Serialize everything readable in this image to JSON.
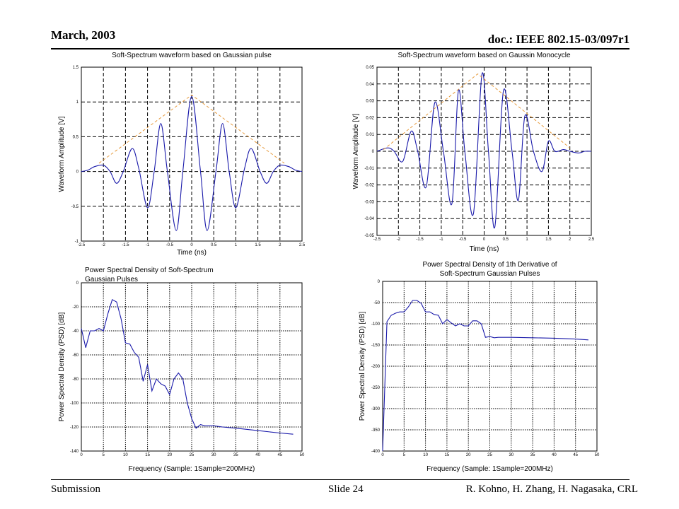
{
  "header": {
    "date": "March, 2003",
    "doc": "doc.: IEEE 802.15-03/097r1"
  },
  "footer": {
    "left": "Submission",
    "slide": "Slide 24",
    "authors": "R. Kohno, H. Zhang, H. Nagasaka, CRL"
  },
  "colors": {
    "curve": "#1a1aaa",
    "envelope": "#e69a3c",
    "grid": "#000000"
  },
  "chart_data": [
    {
      "type": "line",
      "title": "Soft-Spectrum waveform based on Gaussian pulse",
      "xlabel": "Time (ns)",
      "ylabel": "Waveform Amplitude [V]",
      "xlim": [
        -2.5,
        2.5
      ],
      "ylim": [
        -1,
        1.5
      ],
      "xticks": [
        "-2.5",
        "-2",
        "-1.5",
        "-1",
        "-0.5",
        "0",
        "0.5",
        "1",
        "1.5",
        "2",
        "2.5"
      ],
      "yticks": [
        "-1",
        "-0.5",
        "0",
        "0.5",
        "1",
        "1.5"
      ],
      "grid": true,
      "series": [
        {
          "x": [
            -2.5,
            -2.35,
            -2.2,
            -2.0,
            -1.85,
            -1.7,
            -1.55,
            -1.35,
            -1.2,
            -1.0,
            -0.85,
            -0.7,
            -0.55,
            -0.35,
            -0.2,
            0.0,
            0.2,
            0.35,
            0.55,
            0.7,
            0.85,
            1.0,
            1.2,
            1.35,
            1.55,
            1.7,
            1.85,
            2.0,
            2.2,
            2.35,
            2.5
          ],
          "y": [
            0.0,
            0.02,
            0.07,
            0.09,
            0.0,
            -0.17,
            0.0,
            0.33,
            0.05,
            -0.52,
            0.0,
            0.69,
            0.0,
            -0.85,
            0.0,
            1.08,
            0.0,
            -0.85,
            0.0,
            0.69,
            0.0,
            -0.52,
            0.05,
            0.33,
            0.0,
            -0.17,
            0.0,
            0.09,
            0.07,
            0.02,
            0.0
          ]
        },
        {
          "name": "",
          "style": "dashed-envelope",
          "x": [
            -2.1,
            0.0,
            2.1
          ],
          "y": [
            0.12,
            1.1,
            0.12
          ]
        }
      ]
    },
    {
      "type": "line",
      "title": "Soft-Spectrum waveform based on Gaussin Monocycle",
      "xlabel": "Time (ns)",
      "ylabel": "Waveform Amplitude [V]",
      "xlim": [
        -2.5,
        2.5
      ],
      "ylim": [
        -0.05,
        0.05
      ],
      "xticks": [
        "-2.5",
        "-2",
        "-1.5",
        "-1",
        "-0.5",
        "0",
        "0.5",
        "1",
        "1.5",
        "2",
        "2.5"
      ],
      "yticks": [
        "-0.05",
        "-0.04",
        "-0.03",
        "-0.02",
        "-0.01",
        "0",
        "0.01",
        "0.02",
        "0.03",
        "0.04",
        "0.05"
      ],
      "grid": true,
      "series": [
        {
          "x": [
            -2.5,
            -2.25,
            -2.1,
            -1.9,
            -1.7,
            -1.55,
            -1.35,
            -1.15,
            -0.95,
            -0.75,
            -0.6,
            -0.45,
            -0.25,
            -0.05,
            0.1,
            0.25,
            0.45,
            0.65,
            0.8,
            0.95,
            1.15,
            1.35,
            1.5,
            1.65,
            1.85,
            2.0,
            2.2,
            2.35,
            2.5
          ],
          "y": [
            0.0,
            0.002,
            0.0,
            -0.006,
            0.012,
            0.0,
            -0.021,
            0.029,
            0.0,
            -0.031,
            0.036,
            0.0,
            -0.037,
            0.046,
            0.0,
            -0.045,
            0.036,
            0.0,
            -0.029,
            0.021,
            0.0,
            -0.012,
            0.006,
            0.0,
            0.001,
            0.0,
            -0.001,
            0.0,
            0.0
          ]
        },
        {
          "name": "",
          "style": "dashed-envelope",
          "x": [
            -2.35,
            -0.15,
            2.0
          ],
          "y": [
            0.001,
            0.046,
            0.002
          ]
        }
      ]
    },
    {
      "type": "line",
      "title": "Power Spectral Density of Soft-Spectrum Gaussian Pulses",
      "xlabel": "Frequency (Sample: 1Sample=200MHz)",
      "ylabel": "Power Spectral Density (PSD) [dB]",
      "xlim": [
        0,
        50
      ],
      "ylim": [
        -140,
        0
      ],
      "xticks": [
        "0",
        "5",
        "10",
        "15",
        "20",
        "25",
        "30",
        "35",
        "40",
        "45",
        "50"
      ],
      "yticks": [
        "-140",
        "-120",
        "-100",
        "-80",
        "-60",
        "-40",
        "-20",
        "0"
      ],
      "grid": true,
      "series": [
        {
          "x": [
            0,
            1,
            2,
            3,
            4,
            5,
            6,
            7,
            8,
            9,
            10,
            11,
            12,
            13,
            14,
            15,
            16,
            17,
            18,
            19,
            20,
            21,
            22,
            23,
            24,
            25,
            26,
            27,
            28,
            29,
            30,
            32,
            35,
            40,
            45,
            48
          ],
          "y": [
            -38,
            -54,
            -40,
            -40,
            -38,
            -40,
            -26,
            -14,
            -16,
            -30,
            -50,
            -51,
            -58,
            -62,
            -82,
            -68,
            -90,
            -80,
            -84,
            -86,
            -93,
            -80,
            -75,
            -80,
            -100,
            -113,
            -121,
            -118,
            -119,
            -119,
            -119,
            -120,
            -121,
            -123,
            -125,
            -126
          ]
        }
      ]
    },
    {
      "type": "line",
      "title": "Power Spectral Density of 1th Derivative of Soft-Spectrum Gaussian Pulses",
      "xlabel": "Frequency (Sample: 1Sample=200MHz)",
      "ylabel": "Power Spectral Density (PSD) [dB]",
      "xlim": [
        0,
        50
      ],
      "ylim": [
        -400,
        0
      ],
      "xticks": [
        "0",
        "5",
        "10",
        "15",
        "20",
        "25",
        "30",
        "35",
        "40",
        "45",
        "50"
      ],
      "yticks": [
        "-400",
        "-350",
        "-300",
        "-250",
        "-200",
        "-150",
        "-100",
        "-50",
        "0"
      ],
      "grid": true,
      "series": [
        {
          "x": [
            0,
            0.5,
            1,
            2,
            3,
            4,
            5,
            6,
            7,
            8,
            9,
            10,
            11,
            12,
            13,
            14,
            15,
            16,
            17,
            18,
            19,
            20,
            21,
            22,
            23,
            24,
            25,
            26,
            27,
            28,
            30,
            35,
            40,
            45,
            48
          ],
          "y": [
            -400,
            -250,
            -95,
            -80,
            -75,
            -72,
            -72,
            -60,
            -45,
            -45,
            -52,
            -72,
            -72,
            -78,
            -80,
            -100,
            -90,
            -98,
            -105,
            -100,
            -105,
            -105,
            -93,
            -93,
            -100,
            -132,
            -130,
            -133,
            -132,
            -132,
            -132,
            -133,
            -134,
            -136,
            -138
          ]
        }
      ]
    }
  ]
}
